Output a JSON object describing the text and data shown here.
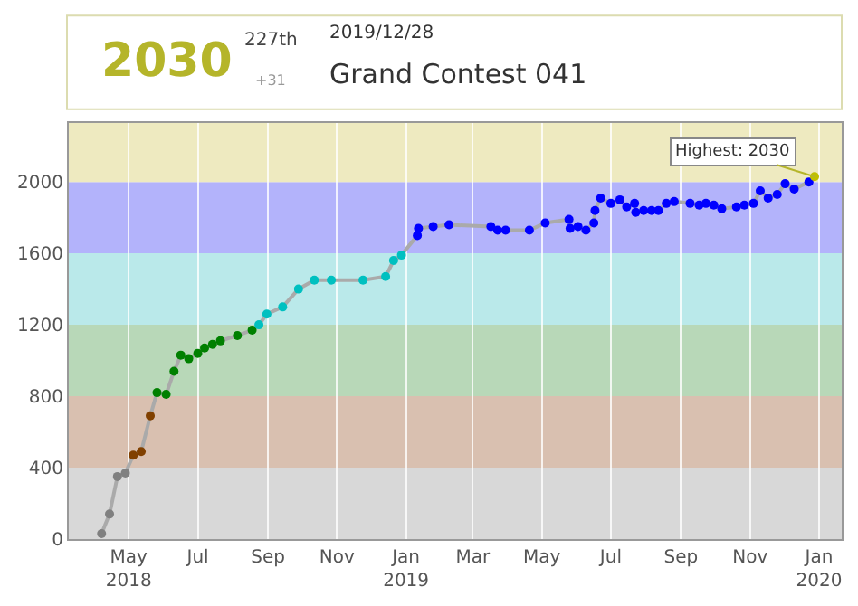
{
  "chart_data": {
    "type": "line",
    "title": "Grand Contest 041",
    "subtitle": "2019/12/28",
    "annotations": [
      "2030",
      "227th",
      "+31",
      {
        "text": "Highest: 2030",
        "x": "2019-12-28",
        "y": 2030
      }
    ],
    "x": [
      "2018-04-07",
      "2018-04-14",
      "2018-04-21",
      "2018-04-28",
      "2018-05-05",
      "2018-05-12",
      "2018-05-20",
      "2018-05-26",
      "2018-06-03",
      "2018-06-10",
      "2018-06-16",
      "2018-06-23",
      "2018-07-01",
      "2018-07-07",
      "2018-07-14",
      "2018-07-21",
      "2018-08-05",
      "2018-08-18",
      "2018-08-24",
      "2018-08-31",
      "2018-09-14",
      "2018-09-28",
      "2018-10-12",
      "2018-10-27",
      "2018-11-24",
      "2018-12-14",
      "2018-12-21",
      "2018-12-28",
      "2019-01-11",
      "2019-01-12",
      "2019-01-25",
      "2019-02-08",
      "2019-03-17",
      "2019-03-23",
      "2019-03-30",
      "2019-04-20",
      "2019-05-04",
      "2019-05-25",
      "2019-05-26",
      "2019-06-02",
      "2019-06-09",
      "2019-06-16",
      "2019-06-17",
      "2019-06-22",
      "2019-07-01",
      "2019-07-09",
      "2019-07-15",
      "2019-07-22",
      "2019-07-23",
      "2019-07-30",
      "2019-08-06",
      "2019-08-12",
      "2019-08-19",
      "2019-08-26",
      "2019-09-09",
      "2019-09-17",
      "2019-09-23",
      "2019-09-30",
      "2019-10-07",
      "2019-10-20",
      "2019-10-27",
      "2019-11-04",
      "2019-11-10",
      "2019-11-17",
      "2019-11-25",
      "2019-12-02",
      "2019-12-10",
      "2019-12-23",
      "2019-12-28"
    ],
    "series": [
      {
        "color": "#aaaaaa",
        "values": [
          30,
          140,
          350,
          370,
          470,
          490,
          690,
          820,
          810,
          940,
          1030,
          1010,
          1040,
          1070,
          1090,
          1110,
          1140,
          1170,
          1200,
          1260,
          1300,
          1400,
          1450,
          1450,
          1450,
          1470,
          1560,
          1590,
          1700,
          1740,
          1750,
          1760,
          1750,
          1730,
          1730,
          1730,
          1770,
          1790,
          1740,
          1750,
          1730,
          1770,
          1840,
          1910,
          1880,
          1900,
          1860,
          1880,
          1830,
          1840,
          1840,
          1840,
          1880,
          1890,
          1880,
          1870,
          1880,
          1870,
          1850,
          1860,
          1870,
          1880,
          1950,
          1910,
          1930,
          1990,
          1960,
          2000,
          2030
        ],
        "colors": [
          "#808080",
          "#808080",
          "#808080",
          "#808080",
          "#804000",
          "#804000",
          "#804000",
          "#008000",
          "#008000",
          "#008000",
          "#008000",
          "#008000",
          "#008000",
          "#008000",
          "#008000",
          "#008000",
          "#008000",
          "#008000",
          "#00c0c0",
          "#00c0c0",
          "#00c0c0",
          "#00c0c0",
          "#00c0c0",
          "#00c0c0",
          "#00c0c0",
          "#00c0c0",
          "#00c0c0",
          "#00c0c0",
          "#0000ff",
          "#0000ff",
          "#0000ff",
          "#0000ff",
          "#0000ff",
          "#0000ff",
          "#0000ff",
          "#0000ff",
          "#0000ff",
          "#0000ff",
          "#0000ff",
          "#0000ff",
          "#0000ff",
          "#0000ff",
          "#0000ff",
          "#0000ff",
          "#0000ff",
          "#0000ff",
          "#0000ff",
          "#0000ff",
          "#0000ff",
          "#0000ff",
          "#0000ff",
          "#0000ff",
          "#0000ff",
          "#0000ff",
          "#0000ff",
          "#0000ff",
          "#0000ff",
          "#0000ff",
          "#0000ff",
          "#0000ff",
          "#0000ff",
          "#0000ff",
          "#0000ff",
          "#0000ff",
          "#0000ff",
          "#0000ff",
          "#0000ff",
          "#0000ff",
          "#c0c000"
        ]
      }
    ],
    "marker": "circle",
    "line_style": "solid",
    "xlim": [
      "2018-03-09",
      "2020-01-21"
    ],
    "xticks": [
      {
        "value": "2018-05-01",
        "label": "May\n2018"
      },
      {
        "value": "2018-07-01",
        "label": "Jul"
      },
      {
        "value": "2018-09-01",
        "label": "Sep"
      },
      {
        "value": "2018-11-01",
        "label": "Nov"
      },
      {
        "value": "2019-01-01",
        "label": "Jan\n2019"
      },
      {
        "value": "2019-03-01",
        "label": "Mar"
      },
      {
        "value": "2019-05-01",
        "label": "May"
      },
      {
        "value": "2019-07-01",
        "label": "Jul"
      },
      {
        "value": "2019-09-01",
        "label": "Sep"
      },
      {
        "value": "2019-11-01",
        "label": "Nov"
      },
      {
        "value": "2020-01-01",
        "label": "Jan\n2020"
      }
    ],
    "ylim": [
      0,
      2330
    ],
    "yticks": [
      0,
      400,
      800,
      1200,
      1600,
      2000
    ],
    "grid": "x",
    "bands": [
      {
        "axis": "y",
        "from": 0,
        "to": 400,
        "color": "#d8d8d8"
      },
      {
        "axis": "y",
        "from": 400,
        "to": 800,
        "color": "#d9c0b0"
      },
      {
        "axis": "y",
        "from": 800,
        "to": 1200,
        "color": "#b8d8b8"
      },
      {
        "axis": "y",
        "from": 1200,
        "to": 1600,
        "color": "#bae9ea"
      },
      {
        "axis": "y",
        "from": 1600,
        "to": 2000,
        "color": "#b3b3fb"
      },
      {
        "axis": "y",
        "from": 2000,
        "to": 2330,
        "color": "#eeeac0"
      }
    ]
  }
}
